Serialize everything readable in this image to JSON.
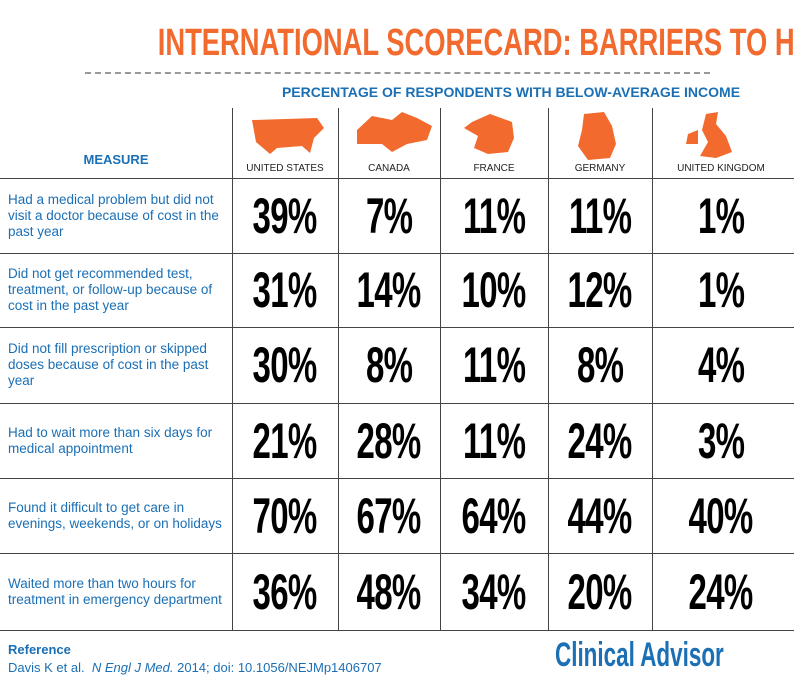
{
  "header": {
    "title": "INTERNATIONAL SCORECARD:  BARRIERS TO HEALTH CARE",
    "subtitle": "PERCENTAGE OF RESPONDENTS WITH BELOW-AVERAGE INCOME"
  },
  "table": {
    "measure_label": "MEASURE",
    "columns": [
      "UNITED STATES",
      "CANADA",
      "FRANCE",
      "GERMANY",
      "UNITED KINGDOM"
    ],
    "rows": [
      {
        "measure": "Had a medical problem but did not visit a doctor because of cost in the past year",
        "values": [
          "39%",
          "7%",
          "11%",
          "11%",
          "1%"
        ]
      },
      {
        "measure": "Did not get recommended test, treatment, or follow-up because of cost in the past year",
        "values": [
          "31%",
          "14%",
          "10%",
          "12%",
          "1%"
        ]
      },
      {
        "measure": "Did not fill prescription or skipped doses because of cost in the past year",
        "values": [
          "30%",
          "8%",
          "11%",
          "8%",
          "4%"
        ]
      },
      {
        "measure": "Had to wait more than six days for medical appointment",
        "values": [
          "21%",
          "28%",
          "11%",
          "24%",
          "3%"
        ]
      },
      {
        "measure": "Found it difficult to get care in evenings, weekends, or on holidays",
        "values": [
          "70%",
          "67%",
          "64%",
          "44%",
          "40%"
        ]
      },
      {
        "measure": "Waited more than two hours for treatment in emergency department",
        "values": [
          "36%",
          "48%",
          "34%",
          "20%",
          "24%"
        ]
      }
    ]
  },
  "footer": {
    "reference_label": "Reference",
    "citation_authors": "Davis K et al.",
    "citation_journal": "N Engl J Med.",
    "citation_rest": "2014; doi: 10.1056/NEJMp1406707",
    "brand": "Clinical Advisor"
  }
}
